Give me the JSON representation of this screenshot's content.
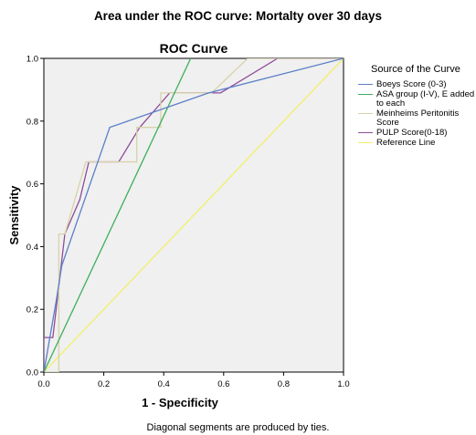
{
  "figure_title": "Area under the ROC curve: Mortalty over 30 days",
  "footnote": "Diagonal segments are produced by ties.",
  "chart_data": {
    "type": "line",
    "title": "ROC Curve",
    "xlabel": "1 - Specificity",
    "ylabel": "Sensitivity",
    "xlim": [
      0,
      1
    ],
    "ylim": [
      0,
      1
    ],
    "xticks": [
      "0.0",
      "0.2",
      "0.4",
      "0.6",
      "0.8",
      "1.0"
    ],
    "yticks": [
      "0.0",
      "0.2",
      "0.4",
      "0.6",
      "0.8",
      "1.0"
    ],
    "grid": false,
    "legend_title": "Source of the Curve",
    "legend_position": "right",
    "series": [
      {
        "name": "Boeys Score (0-3)",
        "color": "#5b7fc9",
        "points": [
          [
            0,
            0
          ],
          [
            0.04,
            0.22
          ],
          [
            0.06,
            0.34
          ],
          [
            0.22,
            0.78
          ],
          [
            0.55,
            0.89
          ],
          [
            1,
            1
          ]
        ]
      },
      {
        "name": "ASA group (I-V), E added to each",
        "color": "#3fae5c",
        "points": [
          [
            0,
            0
          ],
          [
            0.49,
            1
          ]
        ]
      },
      {
        "name": "Meinheims Peritonitis Score",
        "color": "#d7d3a8",
        "points": [
          [
            0,
            0
          ],
          [
            0.05,
            0
          ],
          [
            0.05,
            0.44
          ],
          [
            0.07,
            0.44
          ],
          [
            0.14,
            0.67
          ],
          [
            0.31,
            0.67
          ],
          [
            0.31,
            0.78
          ],
          [
            0.39,
            0.78
          ],
          [
            0.39,
            0.89
          ],
          [
            0.56,
            0.89
          ],
          [
            0.68,
            1
          ],
          [
            1,
            1
          ]
        ]
      },
      {
        "name": "PULP Score(0-18)",
        "color": "#8e4c99",
        "points": [
          [
            0,
            0
          ],
          [
            0,
            0.11
          ],
          [
            0.03,
            0.11
          ],
          [
            0.07,
            0.44
          ],
          [
            0.12,
            0.55
          ],
          [
            0.15,
            0.67
          ],
          [
            0.25,
            0.67
          ],
          [
            0.32,
            0.78
          ],
          [
            0.42,
            0.89
          ],
          [
            0.59,
            0.89
          ],
          [
            0.78,
            1
          ],
          [
            1,
            1
          ]
        ]
      },
      {
        "name": "Reference Line",
        "color": "#f2ef6a",
        "points": [
          [
            0,
            0
          ],
          [
            1,
            1
          ]
        ]
      }
    ]
  }
}
